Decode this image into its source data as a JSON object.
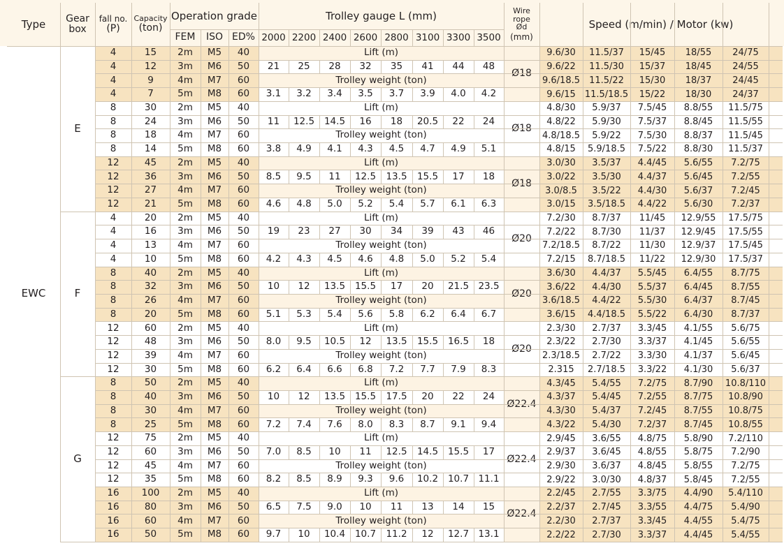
{
  "header": {
    "type": "Type",
    "gear_box_1": "Gear",
    "gear_box_2": "box",
    "fall_1": "fall no.",
    "fall_2": "(P)",
    "cap_1": "Capacity",
    "cap_2": "(ton)",
    "opgrade": "Operation grade",
    "fem": "FEM",
    "iso": "ISO",
    "ed": "ED%",
    "trolley": "Trolley gauge L (mm)",
    "gauges": [
      "2000",
      "2200",
      "2400",
      "2600",
      "2800",
      "3100",
      "3300",
      "3500"
    ],
    "wire_1": "Wire",
    "wire_2": "rope",
    "wire_3": "Ød",
    "wire_4": "(mm)",
    "speed": "Speed (m/min) / Motor (kw)"
  },
  "type_label": "EWC",
  "grades": [
    {
      "fem": "2m",
      "iso": "M5",
      "ed": "40"
    },
    {
      "fem": "3m",
      "iso": "M6",
      "ed": "50"
    },
    {
      "fem": "4m",
      "iso": "M7",
      "ed": "60"
    },
    {
      "fem": "5m",
      "iso": "M8",
      "ed": "60"
    }
  ],
  "lift_label": "Lift (m)",
  "trolley_weight_label": "Trolley weight (ton)",
  "gearboxes": [
    {
      "name": "E",
      "blocks": [
        {
          "fall": "4",
          "caps": [
            "15",
            "12",
            "9",
            "7"
          ],
          "lift": [
            "21",
            "25",
            "28",
            "32",
            "35",
            "41",
            "44",
            "48"
          ],
          "weight": [
            "3.1",
            "3.2",
            "3.4",
            "3.5",
            "3.7",
            "3.9",
            "4.0",
            "4.2"
          ],
          "rope": "Ø18",
          "speeds": [
            [
              "9.6/30",
              "11.5/37",
              "15/45",
              "18/55",
              "24/75"
            ],
            [
              "9.6/22",
              "11.5/30",
              "15/37",
              "18/45",
              "24/55"
            ],
            [
              "9.6/18.5",
              "11.5/22",
              "15/30",
              "18/37",
              "24/45"
            ],
            [
              "9.6/15",
              "11.5/18.5",
              "15/22",
              "18/30",
              "24/37"
            ]
          ]
        },
        {
          "fall": "8",
          "caps": [
            "30",
            "24",
            "18",
            "14"
          ],
          "lift": [
            "11",
            "12.5",
            "14.5",
            "16",
            "18",
            "20.5",
            "22",
            "24"
          ],
          "weight": [
            "3.8",
            "4.9",
            "4.1",
            "4.3",
            "4.5",
            "4.7",
            "4.9",
            "5.1"
          ],
          "rope": "Ø18",
          "speeds": [
            [
              "4.8/30",
              "5.9/37",
              "7.5/45",
              "8.8/55",
              "11.5/75"
            ],
            [
              "4.8/22",
              "5.9/30",
              "7.5/37",
              "8.8/45",
              "11.5/55"
            ],
            [
              "4.8/18.5",
              "5.9/22",
              "7.5/30",
              "8.8/37",
              "11.5/45"
            ],
            [
              "4.8/15",
              "5.9/18.5",
              "7.5/22",
              "8.8/30",
              "11.5/37"
            ]
          ]
        },
        {
          "fall": "12",
          "caps": [
            "45",
            "36",
            "27",
            "21"
          ],
          "lift": [
            "8.5",
            "9.5",
            "11",
            "12.5",
            "13.5",
            "15.5",
            "17",
            "18"
          ],
          "weight": [
            "4.6",
            "4.8",
            "5.0",
            "5.2",
            "5.4",
            "5.7",
            "6.1",
            "6.3"
          ],
          "rope": "Ø18",
          "speeds": [
            [
              "3.0/30",
              "3.5/37",
              "4.4/45",
              "5.6/55",
              "7.2/75"
            ],
            [
              "3.0/22",
              "3.5/30",
              "4.4/37",
              "5.6/45",
              "7.2/55"
            ],
            [
              "3.0/8.5",
              "3.5/22",
              "4.4/30",
              "5.6/37",
              "7.2/45"
            ],
            [
              "3.0/15",
              "3.5/18.5",
              "4.4/22",
              "5.6/30",
              "7.2/37"
            ]
          ]
        }
      ]
    },
    {
      "name": "F",
      "blocks": [
        {
          "fall": "4",
          "caps": [
            "20",
            "16",
            "13",
            "10"
          ],
          "lift": [
            "19",
            "23",
            "27",
            "30",
            "34",
            "39",
            "43",
            "46"
          ],
          "weight": [
            "4.2",
            "4.3",
            "4.5",
            "4.6",
            "4.8",
            "5.0",
            "5.2",
            "5.4"
          ],
          "rope": "Ø20",
          "speeds": [
            [
              "7.2/30",
              "8.7/37",
              "11/45",
              "12.9/55",
              "17.5/75"
            ],
            [
              "7.2/22",
              "8.7/30",
              "11/37",
              "12.9/45",
              "17.5/55"
            ],
            [
              "7.2/18.5",
              "8.7/22",
              "11/30",
              "12.9/37",
              "17.5/45"
            ],
            [
              "7.2/15",
              "8.7/18.5",
              "11/22",
              "12.9/30",
              "17.5/37"
            ]
          ]
        },
        {
          "fall": "8",
          "caps": [
            "40",
            "32",
            "26",
            "20"
          ],
          "lift": [
            "10",
            "12",
            "13.5",
            "15.5",
            "17",
            "20",
            "21.5",
            "23.5"
          ],
          "weight": [
            "5.1",
            "5.3",
            "5.4",
            "5.6",
            "5.8",
            "6.2",
            "6.4",
            "6.7"
          ],
          "rope": "Ø20",
          "speeds": [
            [
              "3.6/30",
              "4.4/37",
              "5.5/45",
              "6.4/55",
              "8.7/75"
            ],
            [
              "3.6/22",
              "4.4/30",
              "5.5/37",
              "6.4/45",
              "8.7/55"
            ],
            [
              "3.6/18.5",
              "4.4/22",
              "5.5/30",
              "6.4/37",
              "8.7/45"
            ],
            [
              "3.6/15",
              "4.4/18.5",
              "5.5/22",
              "6.4/30",
              "8.7/37"
            ]
          ]
        },
        {
          "fall": "12",
          "caps": [
            "60",
            "48",
            "39",
            "30"
          ],
          "lift": [
            "8.0",
            "9.5",
            "10.5",
            "12",
            "13.5",
            "15.5",
            "16.5",
            "18"
          ],
          "weight": [
            "6.2",
            "6.4",
            "6.6",
            "6.8",
            "7.2",
            "7.7",
            "7.9",
            "8.3"
          ],
          "rope": "Ø20",
          "speeds": [
            [
              "2.3/30",
              "2.7/37",
              "3.3/45",
              "4.1/55",
              "5.6/75"
            ],
            [
              "2.3/22",
              "2.7/30",
              "3.3/37",
              "4.1/45",
              "5.6/55"
            ],
            [
              "2.3/18.5",
              "2.7/22",
              "3.3/30",
              "4.1/37",
              "5.6/45"
            ],
            [
              "2.315",
              "2.7/18.5",
              "3.3/22",
              "4.1/30",
              "5.6/37"
            ]
          ]
        }
      ]
    },
    {
      "name": "G",
      "blocks": [
        {
          "fall": "8",
          "caps": [
            "50",
            "40",
            "30",
            "25"
          ],
          "lift": [
            "10",
            "12",
            "13.5",
            "15.5",
            "17.5",
            "20",
            "22",
            "24"
          ],
          "weight": [
            "7.2",
            "7.4",
            "7.6",
            "8.0",
            "8.3",
            "8.7",
            "9.1",
            "9.4"
          ],
          "rope": "Ø22.4",
          "speeds": [
            [
              "4.3/45",
              "5.4/55",
              "7.2/75",
              "8.7/90",
              "10.8/110"
            ],
            [
              "4.3/37",
              "5.4/45",
              "7.2/55",
              "8.7/75",
              "10.8/90"
            ],
            [
              "4.3/30",
              "5.4/37",
              "7.2/45",
              "8.7/55",
              "10.8/75"
            ],
            [
              "4.3/22",
              "5.4/30",
              "7.2/37",
              "8.7/45",
              "10.8/55"
            ]
          ]
        },
        {
          "fall": "12",
          "caps": [
            "75",
            "60",
            "45",
            "35"
          ],
          "lift": [
            "7.0",
            "8.5",
            "10",
            "11",
            "12.5",
            "14.5",
            "15.5",
            "17"
          ],
          "weight": [
            "8.2",
            "8.5",
            "8.9",
            "9.3",
            "9.6",
            "10.2",
            "10.7",
            "11.1"
          ],
          "rope": "Ø22.4",
          "speeds": [
            [
              "2.9/45",
              "3.6/55",
              "4.8/75",
              "5.8/90",
              "7.2/110"
            ],
            [
              "2.9/37",
              "3.6/45",
              "4.8/55",
              "5.8/75",
              "7.2/90"
            ],
            [
              "2.9/30",
              "3.6/37",
              "4.8/45",
              "5.8/55",
              "7.2/75"
            ],
            [
              "2.9/22",
              "3.0/30",
              "4.8/37",
              "5.8/45",
              "7.2/55"
            ]
          ]
        },
        {
          "fall": "16",
          "caps": [
            "100",
            "80",
            "60",
            "50"
          ],
          "lift": [
            "6.5",
            "7.5",
            "9.0",
            "10",
            "11",
            "13",
            "14",
            "15"
          ],
          "weight": [
            "9.7",
            "10",
            "10.4",
            "10.7",
            "11.2",
            "12",
            "12.7",
            "13.1"
          ],
          "rope": "Ø22.4",
          "speeds": [
            [
              "2.2/45",
              "2.7/55",
              "3.3/75",
              "4.4/90",
              "5.4/110"
            ],
            [
              "2.2/37",
              "2.7/45",
              "3.3/55",
              "4.4/75",
              "5.4/90"
            ],
            [
              "2.2/30",
              "2.7/37",
              "3.3/45",
              "4.4/55",
              "5.4/75"
            ],
            [
              "2.2/22",
              "2.7/30",
              "3.3/37",
              "4.4/45",
              "5.4/55"
            ]
          ]
        }
      ]
    }
  ],
  "colors": {
    "header_bg": "#fdf6e9",
    "row_highlight": "#f7e3c0",
    "grid": "#cfc4b2",
    "text": "#231f20"
  }
}
